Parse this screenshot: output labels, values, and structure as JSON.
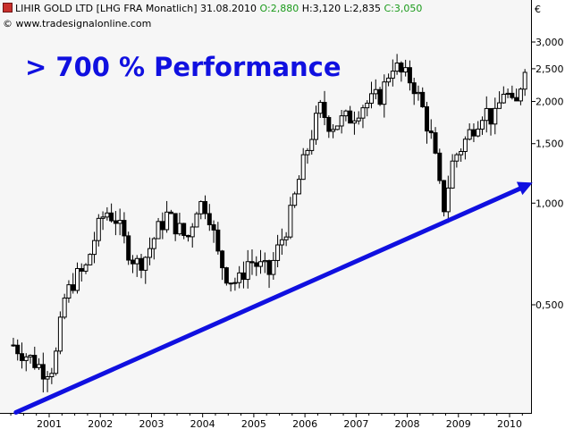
{
  "header": {
    "instrument": "LIHIR GOLD LTD [LHG FRA Monatlich]",
    "date": "31.08.2010",
    "open_label": "O:2,880",
    "high_label": "H:3,120",
    "low_label": "L:2,835",
    "close_label": "C:3,050",
    "copyright": "© www.tradesignalonline.com"
  },
  "annotation": {
    "headline": "> 700 % Performance",
    "arrow_color": "#1010e0"
  },
  "currency_label": "€",
  "colors": {
    "up_candle": "#ffffff",
    "down_candle": "#000000",
    "headline": "#1010e0",
    "open_value": "#1a9a1a",
    "close_value": "#1a9a1a"
  },
  "chart_data": {
    "type": "candlestick",
    "scale": "log",
    "ylim": [
      0.28,
      3.15
    ],
    "y_ticks": [
      {
        "value": 3.0,
        "label": "3,000"
      },
      {
        "value": 2.5,
        "label": "2,500"
      },
      {
        "value": 2.0,
        "label": "2,000"
      },
      {
        "value": 1.5,
        "label": "1,500"
      },
      {
        "value": 1.0,
        "label": "1,000"
      },
      {
        "value": 0.5,
        "label": "0,500"
      }
    ],
    "x_ticks": [
      {
        "value": 2001,
        "label": "2001"
      },
      {
        "value": 2002,
        "label": "2002"
      },
      {
        "value": 2003,
        "label": "2003"
      },
      {
        "value": 2004,
        "label": "2004"
      },
      {
        "value": 2005,
        "label": "2005"
      },
      {
        "value": 2006,
        "label": "2006"
      },
      {
        "value": 2007,
        "label": "2007"
      },
      {
        "value": 2008,
        "label": "2008"
      },
      {
        "value": 2009,
        "label": "2009"
      },
      {
        "value": 2010,
        "label": "2010"
      }
    ],
    "xlim": [
      2000.25,
      2010.67
    ],
    "trend_arrow": {
      "start": [
        2000.35,
        0.24
      ],
      "end": [
        2010.45,
        1.15
      ]
    },
    "monthly_close_approx": [
      [
        2000.3,
        0.38
      ],
      [
        2000.5,
        0.36
      ],
      [
        2000.7,
        0.34
      ],
      [
        2000.9,
        0.32
      ],
      [
        2001.1,
        0.33
      ],
      [
        2001.3,
        0.52
      ],
      [
        2001.5,
        0.6
      ],
      [
        2001.7,
        0.63
      ],
      [
        2001.9,
        0.8
      ],
      [
        2002.1,
        0.95
      ],
      [
        2002.3,
        0.9
      ],
      [
        2002.5,
        0.75
      ],
      [
        2002.7,
        0.66
      ],
      [
        2002.9,
        0.7
      ],
      [
        2003.1,
        0.82
      ],
      [
        2003.3,
        0.92
      ],
      [
        2003.5,
        0.85
      ],
      [
        2003.7,
        0.78
      ],
      [
        2003.9,
        1.0
      ],
      [
        2004.1,
        0.98
      ],
      [
        2004.3,
        0.7
      ],
      [
        2004.5,
        0.6
      ],
      [
        2004.7,
        0.58
      ],
      [
        2004.9,
        0.68
      ],
      [
        2005.1,
        0.65
      ],
      [
        2005.3,
        0.62
      ],
      [
        2005.5,
        0.75
      ],
      [
        2005.7,
        0.9
      ],
      [
        2005.9,
        1.2
      ],
      [
        2006.1,
        1.55
      ],
      [
        2006.3,
        1.9
      ],
      [
        2006.5,
        1.7
      ],
      [
        2006.7,
        1.75
      ],
      [
        2006.9,
        1.8
      ],
      [
        2007.1,
        1.95
      ],
      [
        2007.3,
        2.0
      ],
      [
        2007.5,
        2.1
      ],
      [
        2007.7,
        2.6
      ],
      [
        2007.9,
        2.4
      ],
      [
        2008.1,
        2.3
      ],
      [
        2008.3,
        1.9
      ],
      [
        2008.5,
        1.5
      ],
      [
        2008.7,
        0.95
      ],
      [
        2008.9,
        1.35
      ],
      [
        2009.1,
        1.5
      ],
      [
        2009.3,
        1.7
      ],
      [
        2009.5,
        1.9
      ],
      [
        2009.7,
        1.75
      ],
      [
        2009.9,
        2.2
      ],
      [
        2010.1,
        1.85
      ],
      [
        2010.3,
        2.6
      ],
      [
        2010.5,
        2.85
      ],
      [
        2010.62,
        3.05
      ]
    ]
  }
}
